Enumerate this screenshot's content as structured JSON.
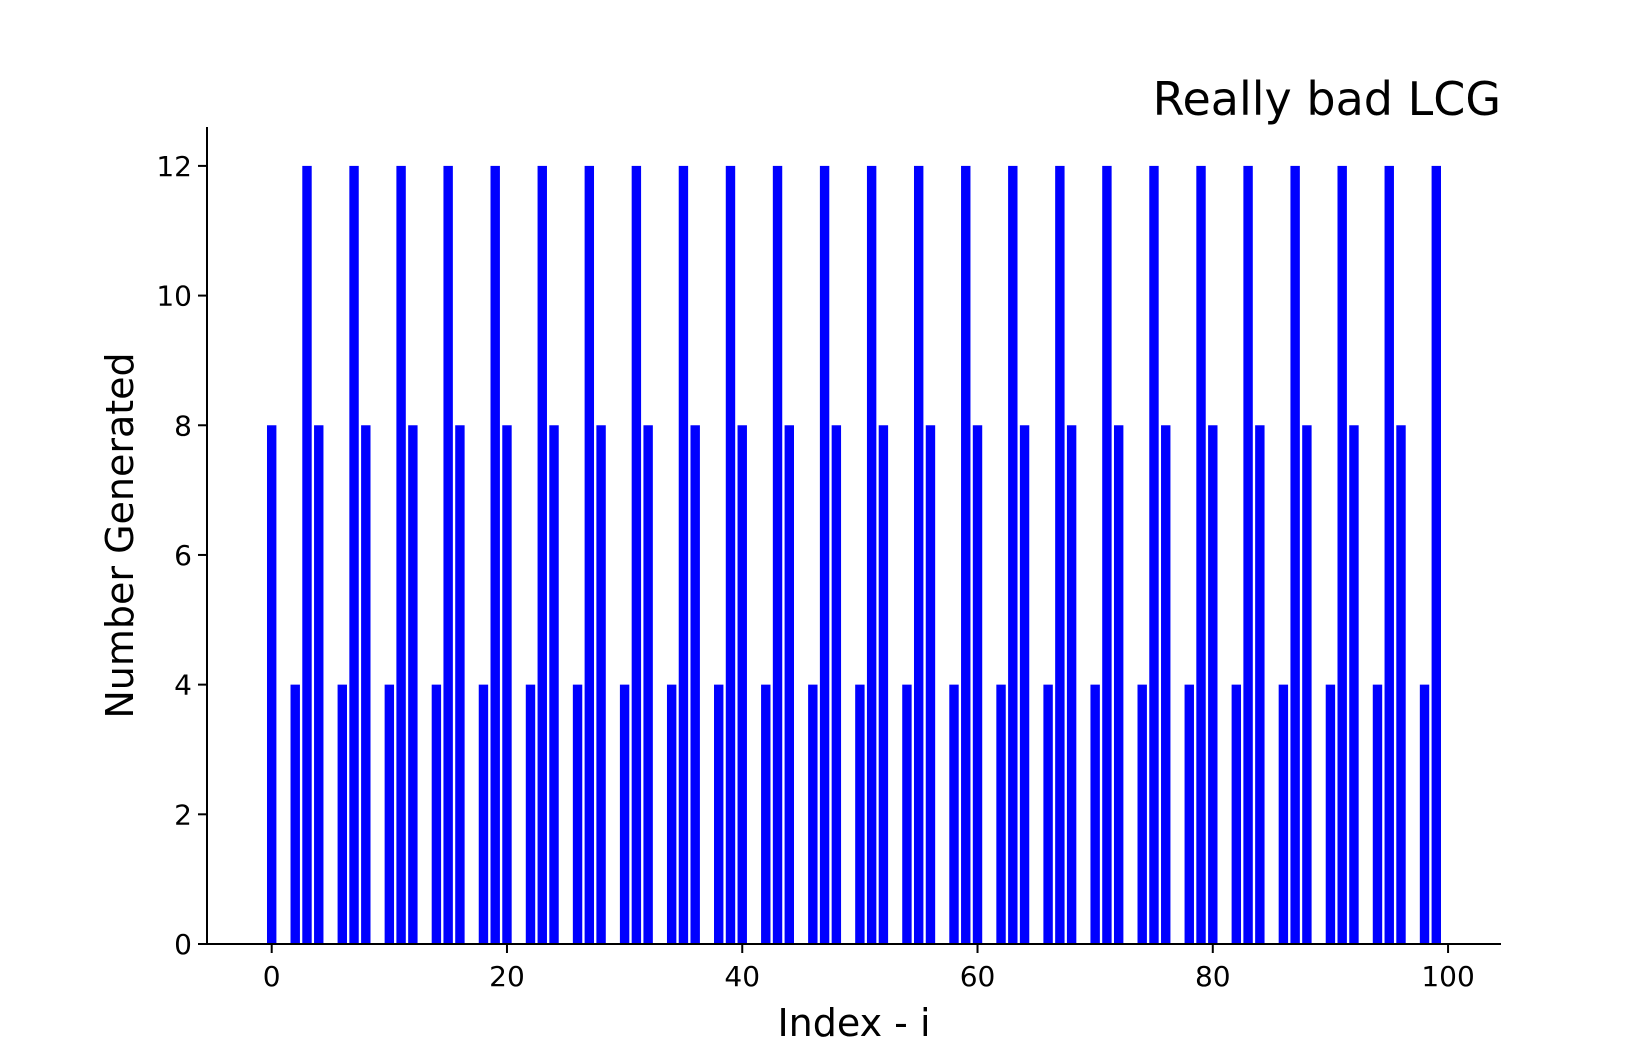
{
  "chart_data": {
    "type": "bar",
    "title": "Really bad LCG",
    "xlabel": "Index - i",
    "ylabel": "Number Generated",
    "xlim": [
      -5.5,
      104.5
    ],
    "ylim": [
      0,
      12.6
    ],
    "xticks": [
      0,
      20,
      40,
      60,
      80,
      100
    ],
    "yticks": [
      0,
      2,
      4,
      6,
      8,
      10,
      12
    ],
    "grid": false,
    "bar_color": "#0000ff",
    "x": [
      0,
      1,
      2,
      3,
      4,
      5,
      6,
      7,
      8,
      9,
      10,
      11,
      12,
      13,
      14,
      15,
      16,
      17,
      18,
      19,
      20,
      21,
      22,
      23,
      24,
      25,
      26,
      27,
      28,
      29,
      30,
      31,
      32,
      33,
      34,
      35,
      36,
      37,
      38,
      39,
      40,
      41,
      42,
      43,
      44,
      45,
      46,
      47,
      48,
      49,
      50,
      51,
      52,
      53,
      54,
      55,
      56,
      57,
      58,
      59,
      60,
      61,
      62,
      63,
      64,
      65,
      66,
      67,
      68,
      69,
      70,
      71,
      72,
      73,
      74,
      75,
      76,
      77,
      78,
      79,
      80,
      81,
      82,
      83,
      84,
      85,
      86,
      87,
      88,
      89,
      90,
      91,
      92,
      93,
      94,
      95,
      96,
      97,
      98,
      99
    ],
    "values": [
      8,
      0,
      4,
      12,
      8,
      0,
      4,
      12,
      8,
      0,
      4,
      12,
      8,
      0,
      4,
      12,
      8,
      0,
      4,
      12,
      8,
      0,
      4,
      12,
      8,
      0,
      4,
      12,
      8,
      0,
      4,
      12,
      8,
      0,
      4,
      12,
      8,
      0,
      4,
      12,
      8,
      0,
      4,
      12,
      8,
      0,
      4,
      12,
      8,
      0,
      4,
      12,
      8,
      0,
      4,
      12,
      8,
      0,
      4,
      12,
      8,
      0,
      4,
      12,
      8,
      0,
      4,
      12,
      8,
      0,
      4,
      12,
      8,
      0,
      4,
      12,
      8,
      0,
      4,
      12,
      8,
      0,
      4,
      12,
      8,
      0,
      4,
      12,
      8,
      0,
      4,
      12,
      8,
      0,
      4,
      12,
      8,
      0,
      4,
      12
    ]
  }
}
